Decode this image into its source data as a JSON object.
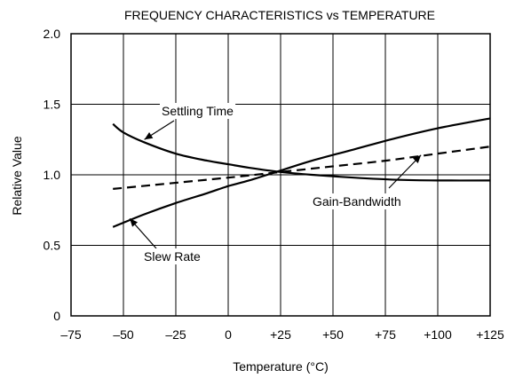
{
  "chart_data": {
    "type": "line",
    "title": "FREQUENCY CHARACTERISTICS vs TEMPERATURE",
    "xlabel": "Temperature (°C)",
    "ylabel": "Relative Value",
    "xlim": [
      -75,
      125
    ],
    "ylim": [
      0,
      2.0
    ],
    "grid": true,
    "x_ticks": [
      -75,
      -50,
      -25,
      0,
      25,
      50,
      75,
      100,
      125
    ],
    "x_tick_labels": [
      "–75",
      "–50",
      "–25",
      "0",
      "+25",
      "+50",
      "+75",
      "+100",
      "+125"
    ],
    "y_ticks": [
      0,
      0.5,
      1.0,
      1.5,
      2.0
    ],
    "y_tick_labels": [
      "0",
      "0.5",
      "1.0",
      "1.5",
      "2.0"
    ],
    "series": [
      {
        "name": "Settling Time",
        "style": "solid",
        "x": [
          -55,
          -50,
          -40,
          -25,
          -10,
          0,
          10,
          25,
          40,
          60,
          80,
          100,
          125
        ],
        "y": [
          1.36,
          1.3,
          1.23,
          1.15,
          1.1,
          1.075,
          1.05,
          1.02,
          1.0,
          0.98,
          0.965,
          0.96,
          0.96
        ]
      },
      {
        "name": "Slew Rate",
        "style": "solid",
        "x": [
          -55,
          -40,
          -25,
          -10,
          0,
          10,
          25,
          40,
          60,
          80,
          100,
          125
        ],
        "y": [
          0.63,
          0.72,
          0.8,
          0.87,
          0.92,
          0.96,
          1.03,
          1.1,
          1.18,
          1.26,
          1.33,
          1.4
        ]
      },
      {
        "name": "Gain-Bandwidth",
        "style": "dashed",
        "x": [
          -55,
          0,
          25,
          50,
          75,
          100,
          125
        ],
        "y": [
          0.9,
          0.98,
          1.02,
          1.06,
          1.1,
          1.15,
          1.2
        ]
      }
    ],
    "annotations": [
      {
        "text": "Settling Time",
        "series": "Settling Time",
        "arrow_to": [
          -40,
          1.25
        ]
      },
      {
        "text": "Slew Rate",
        "series": "Slew Rate",
        "arrow_to": [
          -47,
          0.69
        ]
      },
      {
        "text": "Gain-Bandwidth",
        "series": "Gain-Bandwidth",
        "arrow_to": [
          92,
          1.14
        ]
      }
    ]
  }
}
